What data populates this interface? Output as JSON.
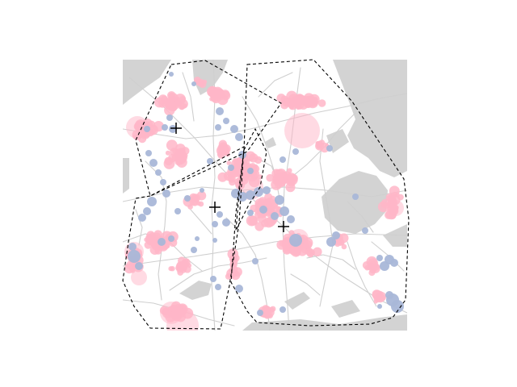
{
  "map": {
    "colors": {
      "background": "#ffffff",
      "water": "#d3d3d3",
      "road": "#cfcfcf",
      "pink_points": "#ffb6c8",
      "blue_points": "#a9b7d8",
      "cluster_hull": "#000000",
      "centroid_marker": "#000000"
    },
    "legend": "none",
    "axes": "hidden",
    "layers": [
      "water-bodies",
      "road-network",
      "pink-point-group",
      "blue-point-group",
      "cluster-hulls",
      "cluster-centroids"
    ],
    "clusters": [
      {
        "id": "cluster-north-west"
      },
      {
        "id": "cluster-west"
      },
      {
        "id": "cluster-center"
      },
      {
        "id": "cluster-east"
      }
    ],
    "centroid_marker_glyph": "plus"
  }
}
